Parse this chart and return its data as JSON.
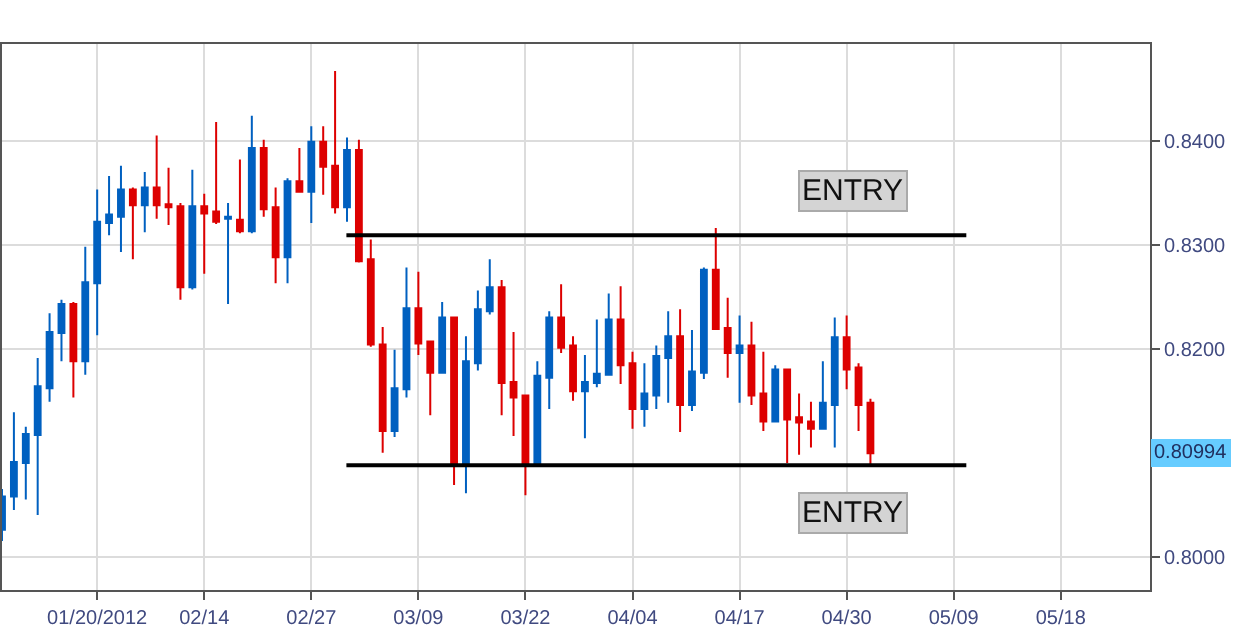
{
  "chart_data": {
    "type": "candlestick",
    "categories": [
      null,
      null,
      null,
      null,
      null,
      null,
      null,
      null,
      "01/20/2012",
      null,
      null,
      null,
      null,
      null,
      null,
      null,
      null,
      "02/14",
      null,
      null,
      null,
      null,
      null,
      null,
      null,
      null,
      "02/27",
      null,
      null,
      null,
      null,
      null,
      null,
      null,
      null,
      "03/09",
      null,
      null,
      null,
      null,
      null,
      null,
      null,
      null,
      "03/22",
      null,
      null,
      null,
      null,
      null,
      null,
      null,
      null,
      "04/04",
      null,
      null,
      null,
      null,
      null,
      null,
      null,
      null,
      "04/17",
      null,
      null,
      null,
      null,
      null,
      null,
      null,
      null,
      "04/30",
      null,
      null,
      null,
      null,
      null,
      null,
      null,
      null,
      "05/09",
      null,
      null,
      null,
      null,
      null,
      null,
      null,
      null,
      "05/18",
      null,
      null,
      null,
      null,
      null,
      null,
      null
    ],
    "ohlc": [
      [
        0.8026,
        0.8065,
        0.8015,
        0.8058
      ],
      [
        0.8058,
        0.8139,
        0.8045,
        0.8091
      ],
      [
        0.809,
        0.8125,
        0.8055,
        0.8118
      ],
      [
        0.8117,
        0.8191,
        0.804,
        0.8164
      ],
      [
        0.8162,
        0.8234,
        0.8149,
        0.8216
      ],
      [
        0.8215,
        0.8247,
        0.8188,
        0.8243
      ],
      [
        0.8243,
        0.8245,
        0.8153,
        0.8188
      ],
      [
        0.8188,
        0.8298,
        0.8175,
        0.8264
      ],
      [
        0.8263,
        0.8353,
        0.8213,
        0.8322
      ],
      [
        0.8321,
        0.8366,
        0.8309,
        0.8329
      ],
      [
        0.8327,
        0.8376,
        0.8293,
        0.8353
      ],
      [
        0.8353,
        0.8355,
        0.8286,
        0.8338
      ],
      [
        0.8338,
        0.837,
        0.8312,
        0.8355
      ],
      [
        0.8355,
        0.8405,
        0.8325,
        0.8338
      ],
      [
        0.8339,
        0.8374,
        0.8319,
        0.8336
      ],
      [
        0.8337,
        0.834,
        0.8247,
        0.8259
      ],
      [
        0.8259,
        0.8372,
        0.8257,
        0.8337
      ],
      [
        0.8337,
        0.8349,
        0.8272,
        0.833
      ],
      [
        0.8332,
        0.8418,
        0.832,
        0.8322
      ],
      [
        0.8325,
        0.834,
        0.8243,
        0.8327
      ],
      [
        0.8324,
        0.8382,
        0.8311,
        0.8313
      ],
      [
        0.8313,
        0.8424,
        0.8311,
        0.8393
      ],
      [
        0.8393,
        0.8401,
        0.8327,
        0.8334
      ],
      [
        0.8336,
        0.8355,
        0.8263,
        0.8288
      ],
      [
        0.8288,
        0.8364,
        0.8263,
        0.8361
      ],
      [
        0.8361,
        0.8393,
        0.835,
        0.8351
      ],
      [
        0.8351,
        0.8414,
        0.8321,
        0.8399
      ],
      [
        0.8399,
        0.8414,
        0.8348,
        0.8375
      ],
      [
        0.8376,
        0.8467,
        0.833,
        0.8336
      ],
      [
        0.8336,
        0.8403,
        0.8322,
        0.8391
      ],
      [
        0.8391,
        0.8401,
        0.8283,
        0.8284
      ],
      [
        0.8286,
        0.8305,
        0.8202,
        0.8204
      ],
      [
        0.8204,
        0.8221,
        0.81,
        0.8121
      ],
      [
        0.8121,
        0.8199,
        0.8115,
        0.8162
      ],
      [
        0.8161,
        0.8278,
        0.8153,
        0.8239
      ],
      [
        0.8239,
        0.8274,
        0.8194,
        0.8205
      ],
      [
        0.8207,
        0.8208,
        0.8136,
        0.8177
      ],
      [
        0.8177,
        0.8245,
        0.8176,
        0.823
      ],
      [
        0.823,
        0.8231,
        0.8069,
        0.8089
      ],
      [
        0.8089,
        0.8212,
        0.8061,
        0.8188
      ],
      [
        0.8186,
        0.8256,
        0.8179,
        0.8238
      ],
      [
        0.8236,
        0.8286,
        0.8233,
        0.8259
      ],
      [
        0.8259,
        0.8266,
        0.8136,
        0.8167
      ],
      [
        0.8168,
        0.8216,
        0.8116,
        0.8153
      ],
      [
        0.8155,
        0.8156,
        0.8059,
        0.8089
      ],
      [
        0.8089,
        0.8188,
        0.8088,
        0.8174
      ],
      [
        0.8172,
        0.8236,
        0.8142,
        0.823
      ],
      [
        0.823,
        0.8262,
        0.8196,
        0.8201
      ],
      [
        0.8203,
        0.8212,
        0.815,
        0.8159
      ],
      [
        0.8159,
        0.8194,
        0.8114,
        0.8168
      ],
      [
        0.8167,
        0.8228,
        0.8163,
        0.8176
      ],
      [
        0.8175,
        0.8253,
        0.8174,
        0.8228
      ],
      [
        0.8228,
        0.826,
        0.8166,
        0.8184
      ],
      [
        0.8186,
        0.8197,
        0.8123,
        0.8142
      ],
      [
        0.8142,
        0.8186,
        0.8125,
        0.8157
      ],
      [
        0.8155,
        0.8203,
        0.8142,
        0.8193
      ],
      [
        0.8191,
        0.8236,
        0.8148,
        0.8212
      ],
      [
        0.8212,
        0.8238,
        0.812,
        0.8146
      ],
      [
        0.8146,
        0.8218,
        0.814,
        0.8178
      ],
      [
        0.8177,
        0.8278,
        0.8171,
        0.8276
      ],
      [
        0.8276,
        0.8316,
        0.8218,
        0.8219
      ],
      [
        0.822,
        0.8249,
        0.8172,
        0.8196
      ],
      [
        0.8196,
        0.8232,
        0.8148,
        0.8203
      ],
      [
        0.8203,
        0.8226,
        0.8146,
        0.8155
      ],
      [
        0.8157,
        0.8197,
        0.8121,
        0.813
      ],
      [
        0.813,
        0.8184,
        0.8129,
        0.818
      ],
      [
        0.818,
        0.8181,
        0.809,
        0.8132
      ],
      [
        0.8134,
        0.8157,
        0.8098,
        0.8129
      ],
      [
        0.813,
        0.8149,
        0.8105,
        0.8123
      ],
      [
        0.8123,
        0.8188,
        0.8122,
        0.8148
      ],
      [
        0.8146,
        0.823,
        0.8105,
        0.8211
      ],
      [
        0.8211,
        0.8232,
        0.8161,
        0.818
      ],
      [
        0.8182,
        0.8186,
        0.8121,
        0.8146
      ],
      [
        0.8148,
        0.8152,
        0.8089,
        0.80994
      ],
      null,
      null,
      null,
      null,
      null,
      null,
      null,
      null,
      null,
      null,
      null,
      null,
      null,
      null,
      null,
      null,
      null,
      null,
      null,
      null,
      null,
      null,
      null
    ],
    "colors": [
      "#0060c0",
      "#0060c0",
      "#0060c0",
      "#0060c0",
      "#0060c0",
      "#0060c0",
      "#dd0000",
      "#0060c0",
      "#0060c0",
      "#0060c0",
      "#0060c0",
      "#dd0000",
      "#0060c0",
      "#dd0000",
      "#dd0000",
      "#dd0000",
      "#0060c0",
      "#dd0000",
      "#dd0000",
      "#0060c0",
      "#dd0000",
      "#0060c0",
      "#dd0000",
      "#dd0000",
      "#0060c0",
      "#dd0000",
      "#0060c0",
      "#dd0000",
      "#dd0000",
      "#0060c0",
      "#dd0000",
      "#dd0000",
      "#dd0000",
      "#0060c0",
      "#0060c0",
      "#dd0000",
      "#dd0000",
      "#0060c0",
      "#dd0000",
      "#0060c0",
      "#0060c0",
      "#0060c0",
      "#dd0000",
      "#dd0000",
      "#dd0000",
      "#0060c0",
      "#0060c0",
      "#dd0000",
      "#dd0000",
      "#0060c0",
      "#0060c0",
      "#0060c0",
      "#dd0000",
      "#dd0000",
      "#0060c0",
      "#0060c0",
      "#0060c0",
      "#dd0000",
      "#0060c0",
      "#0060c0",
      "#dd0000",
      "#dd0000",
      "#0060c0",
      "#dd0000",
      "#dd0000",
      "#0060c0",
      "#dd0000",
      "#dd0000",
      "#dd0000",
      "#0060c0",
      "#0060c0",
      "#dd0000",
      "#dd0000",
      "#dd0000",
      null,
      null,
      null,
      null,
      null,
      null,
      null,
      null,
      null,
      null,
      null,
      null,
      null,
      null,
      null,
      null,
      null,
      null,
      null,
      null,
      null,
      null,
      null
    ],
    "ylim": [
      0.7968,
      0.8493
    ],
    "yticks": [
      {
        "value": 0.8,
        "label": "0.8000"
      },
      {
        "value": 0.82,
        "label": "0.8200"
      },
      {
        "value": 0.83,
        "label": "0.8300"
      },
      {
        "value": 0.84,
        "label": "0.8400"
      }
    ],
    "grid": true,
    "ref_lines": [
      {
        "axis": "y",
        "value": 0.8309,
        "label": "ENTRY",
        "color": "#000000"
      },
      {
        "axis": "y",
        "value": 0.8088,
        "label": "ENTRY",
        "color": "#000000"
      }
    ],
    "annotations": [
      {
        "text": "0.80994",
        "y": 0.80994
      }
    ]
  }
}
